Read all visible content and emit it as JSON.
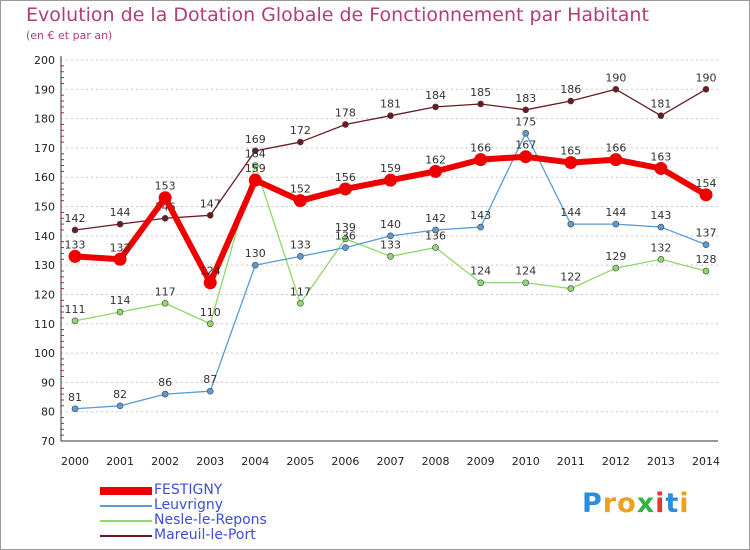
{
  "chart_data": {
    "type": "line",
    "title": "Evolution de la Dotation Globale de Fonctionnement par Habitant",
    "subtitle": "(en € et par an)",
    "xlabel": "",
    "ylabel": "",
    "x": [
      "2000",
      "2001",
      "2002",
      "2003",
      "2004",
      "2005",
      "2006",
      "2007",
      "2008",
      "2009",
      "2010",
      "2011",
      "2012",
      "2013",
      "2014"
    ],
    "ylim": [
      70,
      200
    ],
    "yticks": [
      70,
      80,
      90,
      100,
      110,
      120,
      130,
      140,
      150,
      160,
      170,
      180,
      190,
      200
    ],
    "grid": "horizontal dashed",
    "legend_position": "bottom-left",
    "series": [
      {
        "name": "Mareuil-le-Port",
        "color": "#6b1a22",
        "values": [
          142,
          144,
          146,
          147,
          169,
          172,
          178,
          181,
          184,
          185,
          183,
          186,
          190,
          181,
          190
        ]
      },
      {
        "name": "Nesle-le-Repons",
        "color": "#8fd86b",
        "values": [
          111,
          114,
          117,
          110,
          164,
          117,
          139,
          133,
          136,
          124,
          124,
          122,
          129,
          132,
          128
        ]
      },
      {
        "name": "Leuvrigny",
        "color": "#5b9bd2",
        "values": [
          81,
          82,
          86,
          87,
          130,
          133,
          136,
          140,
          142,
          143,
          175,
          144,
          144,
          143,
          137
        ]
      },
      {
        "name": "FESTIGNY",
        "color": "#ee0000",
        "values": [
          133,
          132,
          153,
          124,
          159,
          152,
          156,
          159,
          162,
          166,
          167,
          165,
          166,
          163,
          154
        ]
      }
    ],
    "legend_order": [
      "FESTIGNY",
      "Leuvrigny",
      "Nesle-le-Repons",
      "Mareuil-le-Port"
    ]
  },
  "logo": {
    "letters": [
      "P",
      "r",
      "o",
      "x",
      "i",
      "t",
      "i"
    ],
    "colors": [
      "#2a8fd8",
      "#f0a020",
      "#f0a020",
      "#36b24a",
      "#e8342c",
      "#2a8fd8",
      "#f0a020"
    ]
  }
}
